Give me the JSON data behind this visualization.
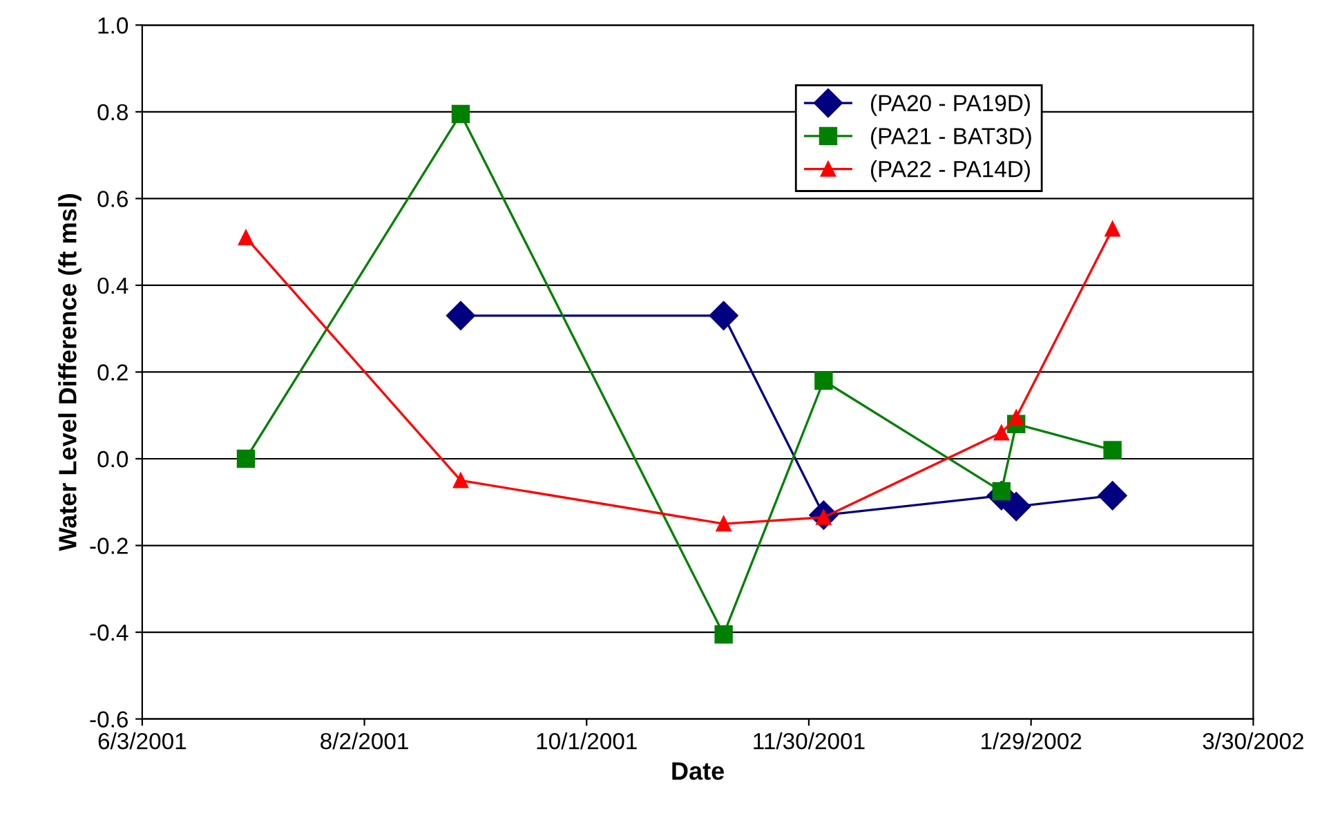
{
  "chart_data": {
    "type": "line",
    "xlabel": "Date",
    "ylabel": "Water Level Difference (ft msl)",
    "xlim": [
      "2001-06-03",
      "2002-03-30"
    ],
    "xticks": [
      {
        "value": "2001-06-03",
        "label": "6/3/2001"
      },
      {
        "value": "2001-08-02",
        "label": "8/2/2001"
      },
      {
        "value": "2001-10-01",
        "label": "10/1/2001"
      },
      {
        "value": "2001-11-30",
        "label": "11/30/2001"
      },
      {
        "value": "2002-01-29",
        "label": "1/29/2002"
      },
      {
        "value": "2002-03-30",
        "label": "3/30/2002"
      }
    ],
    "ylim": [
      -0.6,
      1.0
    ],
    "yticks": [
      {
        "value": -0.6,
        "label": "-0.6"
      },
      {
        "value": -0.4,
        "label": "-0.4"
      },
      {
        "value": -0.2,
        "label": "-0.2"
      },
      {
        "value": 0.0,
        "label": "0.0"
      },
      {
        "value": 0.2,
        "label": "0.2"
      },
      {
        "value": 0.4,
        "label": "0.4"
      },
      {
        "value": 0.6,
        "label": "0.6"
      },
      {
        "value": 0.8,
        "label": "0.8"
      },
      {
        "value": 1.0,
        "label": "1.0"
      }
    ],
    "grid": "y",
    "legend": "top right",
    "series": [
      {
        "name": "(PA20 - PA19D)",
        "color": "#000080",
        "marker": "diamond",
        "x": [
          "2001-08-28",
          "2001-11-07",
          "2001-12-04",
          "2002-01-21",
          "2002-01-25",
          "2002-02-20"
        ],
        "values": [
          0.33,
          0.33,
          -0.13,
          -0.085,
          -0.11,
          -0.085
        ]
      },
      {
        "name": "(PA21 - BAT3D)",
        "color": "#008000",
        "marker": "square",
        "x": [
          "2001-07-01",
          "2001-08-28",
          "2001-11-07",
          "2001-12-04",
          "2002-01-21",
          "2002-01-25",
          "2002-02-20"
        ],
        "values": [
          0.0,
          0.795,
          -0.405,
          0.18,
          -0.075,
          0.08,
          0.02
        ]
      },
      {
        "name": "(PA22 - PA14D)",
        "color": "#ff0000",
        "marker": "triangle",
        "x": [
          "2001-07-01",
          "2001-08-28",
          "2001-11-07",
          "2001-12-04",
          "2002-01-21",
          "2002-01-25",
          "2002-02-20"
        ],
        "values": [
          0.51,
          -0.05,
          -0.15,
          -0.135,
          0.06,
          0.095,
          0.53
        ]
      }
    ]
  }
}
